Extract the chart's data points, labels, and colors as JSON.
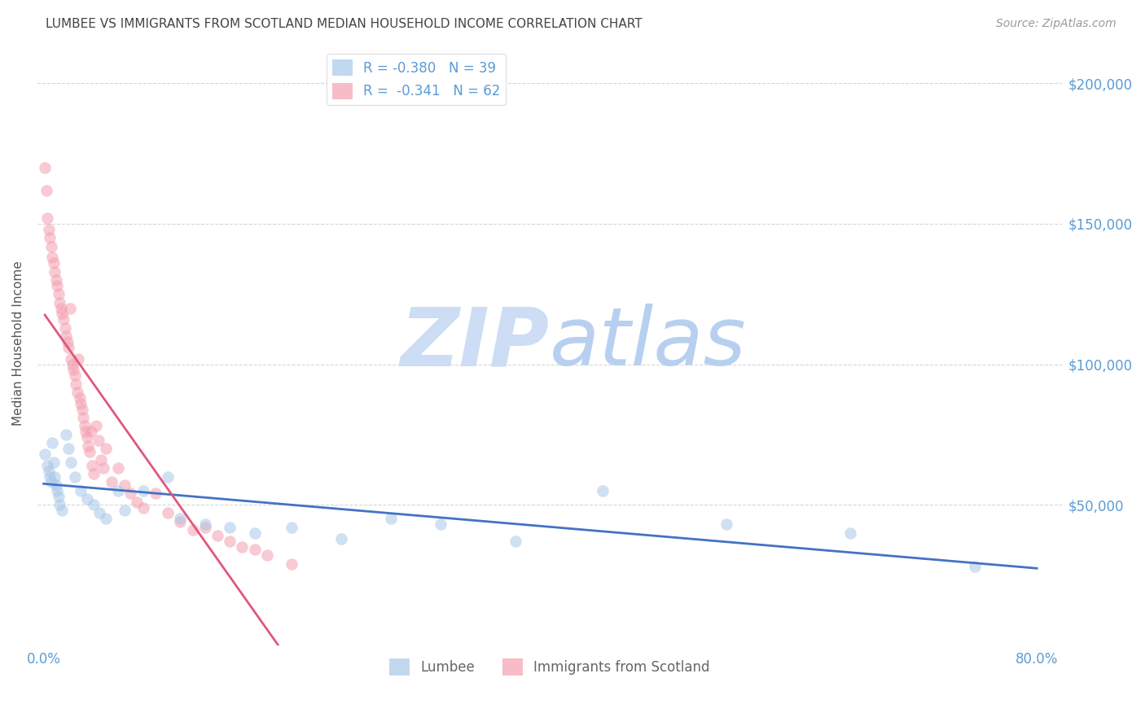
{
  "title": "LUMBEE VS IMMIGRANTS FROM SCOTLAND MEDIAN HOUSEHOLD INCOME CORRELATION CHART",
  "source": "Source: ZipAtlas.com",
  "ylabel": "Median Household Income",
  "watermark_zip": "ZIP",
  "watermark_atlas": "atlas",
  "lumbee_r": -0.38,
  "lumbee_n": 39,
  "scotland_r": -0.341,
  "scotland_n": 62,
  "lumbee_color": "#a8c8e8",
  "scotland_color": "#f4a0b0",
  "lumbee_line_color": "#4472c4",
  "scotland_line_color": "#e05878",
  "lumbee_scatter_x": [
    0.001,
    0.003,
    0.004,
    0.005,
    0.006,
    0.007,
    0.008,
    0.009,
    0.01,
    0.011,
    0.012,
    0.013,
    0.015,
    0.018,
    0.02,
    0.022,
    0.025,
    0.03,
    0.035,
    0.04,
    0.045,
    0.05,
    0.06,
    0.065,
    0.08,
    0.1,
    0.11,
    0.13,
    0.15,
    0.17,
    0.2,
    0.24,
    0.28,
    0.32,
    0.38,
    0.45,
    0.55,
    0.65,
    0.75
  ],
  "lumbee_scatter_y": [
    68000,
    64000,
    62000,
    60000,
    58000,
    72000,
    65000,
    60000,
    57000,
    55000,
    53000,
    50000,
    48000,
    75000,
    70000,
    65000,
    60000,
    55000,
    52000,
    50000,
    47000,
    45000,
    55000,
    48000,
    55000,
    60000,
    45000,
    43000,
    42000,
    40000,
    42000,
    38000,
    45000,
    43000,
    37000,
    55000,
    43000,
    40000,
    28000
  ],
  "scotland_scatter_x": [
    0.001,
    0.002,
    0.003,
    0.004,
    0.005,
    0.006,
    0.007,
    0.008,
    0.009,
    0.01,
    0.011,
    0.012,
    0.013,
    0.014,
    0.015,
    0.016,
    0.017,
    0.018,
    0.019,
    0.02,
    0.021,
    0.022,
    0.023,
    0.024,
    0.025,
    0.026,
    0.027,
    0.028,
    0.029,
    0.03,
    0.031,
    0.032,
    0.033,
    0.034,
    0.035,
    0.036,
    0.037,
    0.038,
    0.039,
    0.04,
    0.042,
    0.044,
    0.046,
    0.048,
    0.05,
    0.055,
    0.06,
    0.065,
    0.07,
    0.075,
    0.08,
    0.09,
    0.1,
    0.11,
    0.12,
    0.13,
    0.14,
    0.15,
    0.16,
    0.17,
    0.18,
    0.2
  ],
  "scotland_scatter_y": [
    170000,
    162000,
    152000,
    148000,
    145000,
    142000,
    138000,
    136000,
    133000,
    130000,
    128000,
    125000,
    122000,
    120000,
    118000,
    116000,
    113000,
    110000,
    108000,
    106000,
    120000,
    102000,
    100000,
    98000,
    96000,
    93000,
    90000,
    102000,
    88000,
    86000,
    84000,
    81000,
    78000,
    76000,
    74000,
    71000,
    69000,
    76000,
    64000,
    61000,
    78000,
    73000,
    66000,
    63000,
    70000,
    58000,
    63000,
    57000,
    54000,
    51000,
    49000,
    54000,
    47000,
    44000,
    41000,
    42000,
    39000,
    37000,
    35000,
    34000,
    32000,
    29000
  ],
  "xlim": [
    -0.005,
    0.82
  ],
  "ylim": [
    0,
    215000
  ],
  "yticks": [
    0,
    50000,
    100000,
    150000,
    200000
  ],
  "ytick_labels": [
    "",
    "$50,000",
    "$100,000",
    "$150,000",
    "$200,000"
  ],
  "xtick_vals": [
    0.0,
    0.1,
    0.2,
    0.3,
    0.4,
    0.5,
    0.6,
    0.7,
    0.8
  ],
  "background_color": "#ffffff",
  "grid_color": "#cccccc",
  "title_color": "#444444",
  "axis_tick_color": "#5b9bd5",
  "watermark_color_zip": "#ccddf5",
  "watermark_color_atlas": "#b8d0f0"
}
